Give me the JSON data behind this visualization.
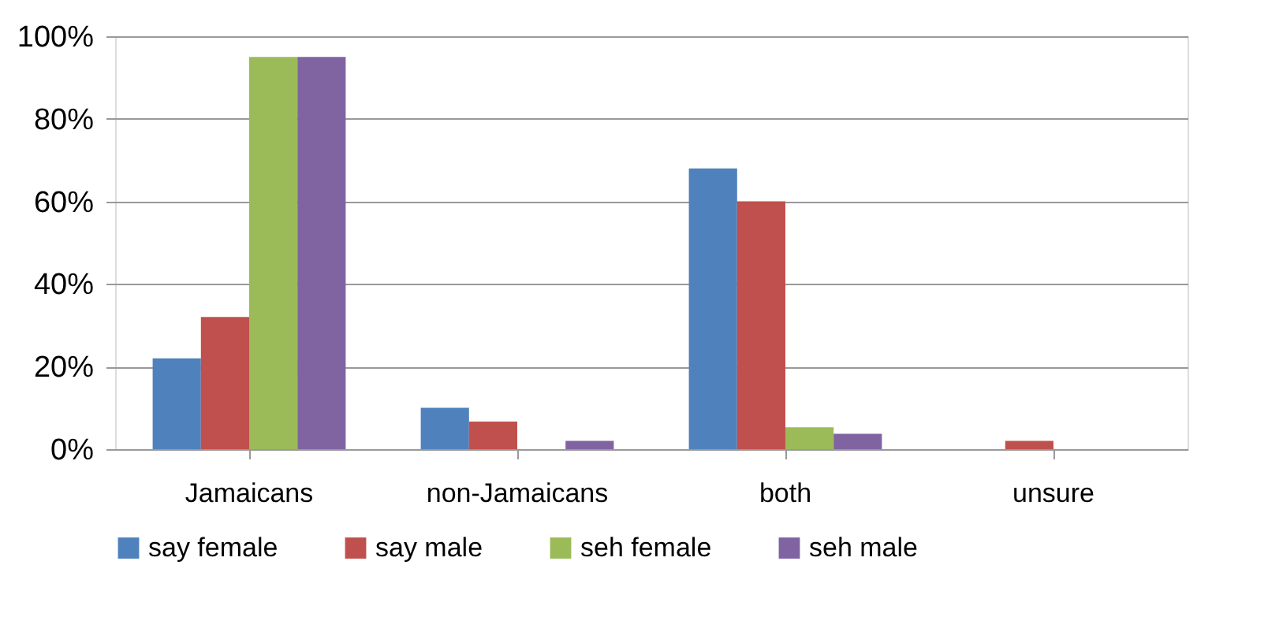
{
  "chart_data": {
    "type": "bar",
    "categories": [
      "Jamaicans",
      "non-Jamaicans",
      "both",
      "unsure"
    ],
    "series": [
      {
        "name": "say female",
        "color": "#4f81bd",
        "values": [
          22,
          10,
          68,
          0
        ]
      },
      {
        "name": "say male",
        "color": "#c0504d",
        "values": [
          32,
          6.7,
          60,
          2
        ]
      },
      {
        "name": "seh female",
        "color": "#9bbb59",
        "values": [
          95,
          0,
          5.3,
          0
        ]
      },
      {
        "name": "seh male",
        "color": "#8064a2",
        "values": [
          95,
          2,
          3.7,
          0
        ]
      }
    ],
    "ylim": [
      0,
      100
    ],
    "yticks": [
      {
        "value": 0,
        "label": "0%"
      },
      {
        "value": 20,
        "label": "20%"
      },
      {
        "value": 40,
        "label": "40%"
      },
      {
        "value": 60,
        "label": "60%"
      },
      {
        "value": 80,
        "label": "80%"
      },
      {
        "value": 100,
        "label": "100%"
      }
    ],
    "grid": "y",
    "legend": "bottom"
  }
}
